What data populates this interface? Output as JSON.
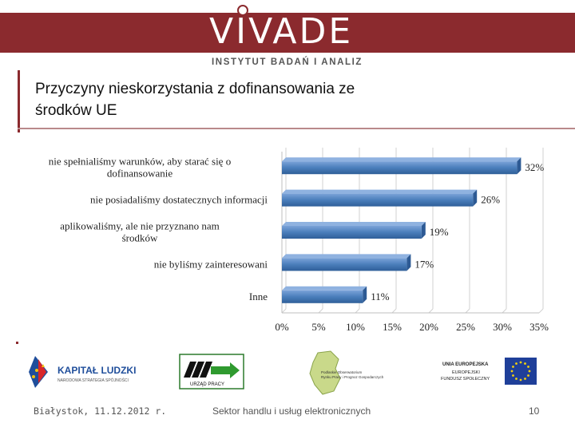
{
  "header": {
    "logo_text": "VIVADE",
    "subtitle": "INSTYTUT BADAŃ I ANALIZ",
    "accent_color": "#8b2a2e"
  },
  "slide": {
    "title_line1": "Przyczyny nieskorzystania z dofinansowania ze",
    "title_line2": "środków UE"
  },
  "chart_data": {
    "type": "bar",
    "orientation": "horizontal",
    "categories": [
      [
        "nie spełnialiśmy warunków, aby starać się o",
        "dofinansowanie"
      ],
      [
        "nie posiadaliśmy dostatecznych informacji"
      ],
      [
        "aplikowaliśmy, ale nie przyznano nam",
        "środków"
      ],
      [
        "nie byliśmy zainteresowani"
      ],
      [
        "Inne"
      ]
    ],
    "values": [
      32,
      26,
      19,
      17,
      11
    ],
    "data_labels": [
      "32%",
      "26%",
      "19%",
      "17%",
      "11%"
    ],
    "xlim": [
      0,
      35
    ],
    "ticks": [
      "0%",
      "5%",
      "10%",
      "15%",
      "20%",
      "25%",
      "30%",
      "35%"
    ],
    "grid": true,
    "bar_color": "#4a7ebb"
  },
  "logos": {
    "kapital_title": "KAPITAŁ LUDZKI",
    "kapital_sub": "NARODOWA STRATEGIA SPÓJNOŚCI",
    "urzad": "URZĄD PRACY",
    "obs_line1": "Podlaskie Obserwatorium",
    "obs_line2": "Rynku Pracy i Prognoz Gospodarczych",
    "ue_line1": "UNIA EUROPEJSKA",
    "ue_line2": "EUROPEJSKI",
    "ue_line3": "FUNDUSZ SPOŁECZNY"
  },
  "footer": {
    "left": "Białystok, 11.12.2012 r.",
    "center": "Sektor handlu i usług elektronicznych",
    "page": "10"
  }
}
